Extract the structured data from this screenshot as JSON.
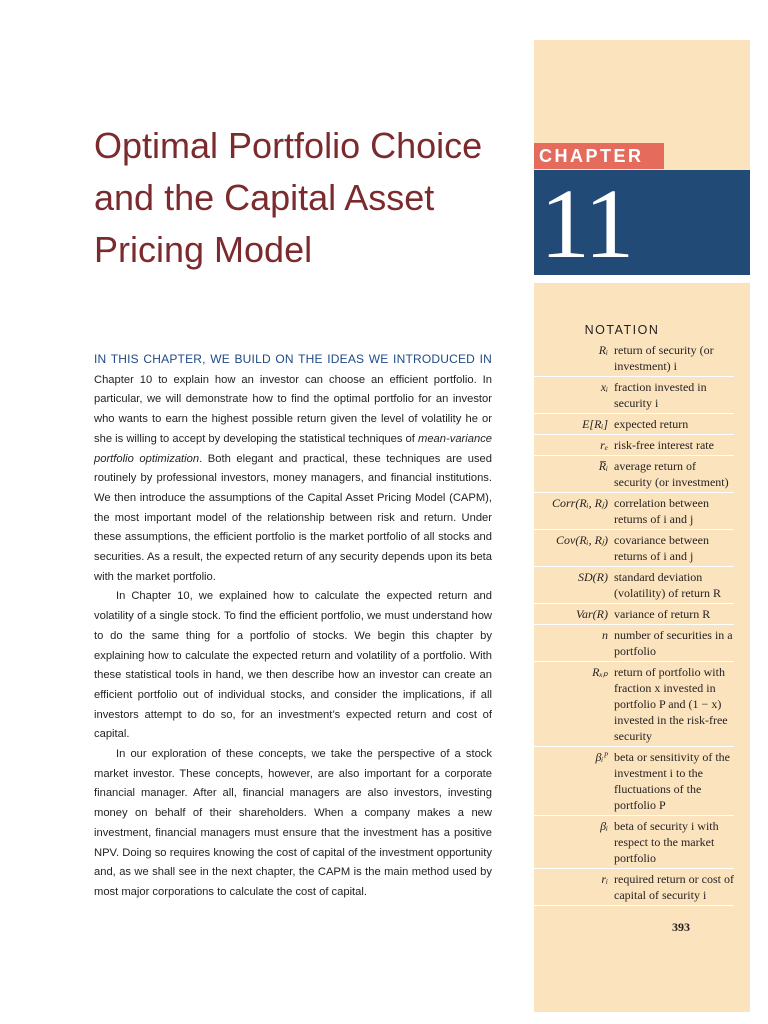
{
  "chapter": {
    "label": "CHAPTER",
    "number": "11"
  },
  "title": [
    "Optimal Portfolio Choice",
    "and the Capital Asset",
    "Pricing Model"
  ],
  "intro": {
    "lead": "IN THIS CHAPTER, WE BUILD ON THE IDEAS WE INTRODUCED IN",
    "p1_a": " Chapter 10 to explain how an investor can choose an efficient portfolio. In particular, we will demonstrate how to find the optimal portfolio for an investor who wants to earn the highest possible return given the level of volatility he or she is willing to accept by developing the statistical techniques of ",
    "p1_em": "mean-variance portfolio optimization",
    "p1_b": ". Both elegant and practical, these techniques are used routinely by professional investors, money managers, and financial institutions. We then introduce the assumptions of the Capital Asset Pricing Model (CAPM), the most important model of the relationship between risk and return. Under these assumptions, the efficient portfolio is the market portfolio of all stocks and securities. As a result, the expected return of any security depends upon its beta with the market portfolio.",
    "p2": "In Chapter 10, we explained how to calculate the expected return and volatility of a single stock. To find the efficient portfolio, we must understand how to do the same thing for a portfolio of stocks. We begin this chapter by explaining how to calculate the expected return and volatility of a portfolio. With these statistical tools in hand, we then describe how an investor can create an efficient portfolio out of individual stocks, and consider the implications, if all investors attempt to do so, for an investment’s expected return and cost of capital.",
    "p3": "In our exploration of these concepts, we take the perspective of a stock market investor. These concepts, however, are also important for a corporate financial manager. After all, financial managers are also investors, investing money on behalf of their shareholders. When a company makes a new investment, financial managers must ensure that the investment has a positive NPV. Doing so requires knowing the cost of capital of the investment opportunity and, as we shall see in the next chapter, the CAPM is the main method used by most major corporations to calculate the cost of capital."
  },
  "notation": {
    "heading": "NOTATION",
    "items": [
      {
        "symbol": "Rᵢ",
        "desc": "return of security (or investment) i"
      },
      {
        "symbol": "xᵢ",
        "desc": "fraction invested in security i"
      },
      {
        "symbol": "E[Rᵢ]",
        "desc": "expected return"
      },
      {
        "symbol": "rₑ",
        "desc": "risk-free interest rate"
      },
      {
        "symbol": "R̅ᵢ",
        "desc": "average return of security (or investment)"
      },
      {
        "symbol": "Corr(Rᵢ, Rⱼ)",
        "desc": "correlation between returns of i and j"
      },
      {
        "symbol": "Cov(Rᵢ, Rⱼ)",
        "desc": "covariance between returns of i and j"
      },
      {
        "symbol": "SD(R)",
        "desc": "standard deviation (volatility) of return R"
      },
      {
        "symbol": "Var(R)",
        "desc": "variance of return R"
      },
      {
        "symbol": "n",
        "desc": "number of securities in a portfolio"
      },
      {
        "symbol": "Rₓₚ",
        "desc": "return of portfolio with fraction x invested in portfolio P and (1 − x) invested in the risk-free security"
      },
      {
        "symbol": "βᵢᴾ",
        "desc": "beta or sensitivity of the investment i to the fluctuations of the portfolio P"
      },
      {
        "symbol": "βᵢ",
        "desc": "beta of security i with respect to the market portfolio"
      },
      {
        "symbol": "rᵢ",
        "desc": "required return or cost of capital of security i"
      }
    ]
  },
  "page_number": "393"
}
